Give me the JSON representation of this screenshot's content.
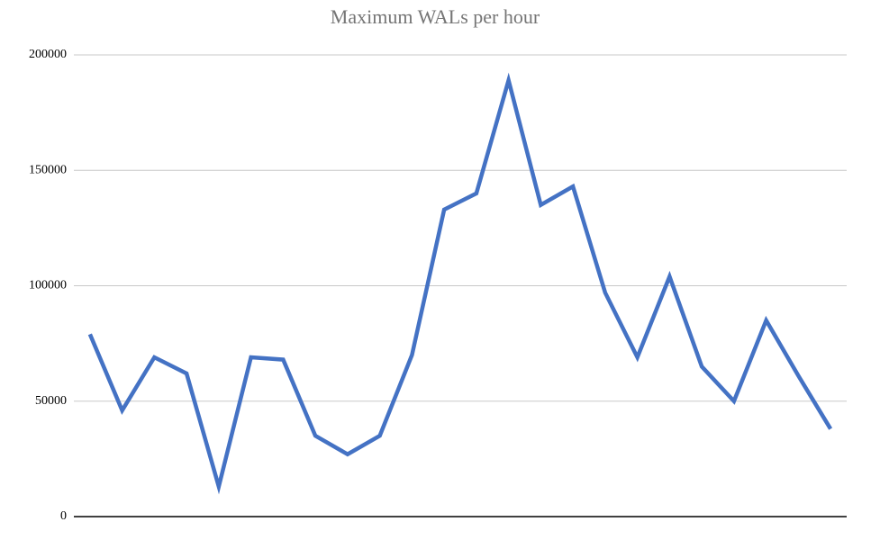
{
  "chart_data": {
    "type": "line",
    "title": "Maximum WALs per hour",
    "categories": [
      null,
      null,
      null,
      null,
      null,
      null,
      null,
      null,
      null,
      null,
      null,
      null,
      null,
      null,
      null,
      null,
      null,
      null,
      null,
      null,
      null,
      null,
      null,
      null
    ],
    "series": [
      {
        "color": "#4472c4",
        "values": [
          79000,
          46000,
          69000,
          62000,
          13000,
          69000,
          68000,
          35000,
          27000,
          35000,
          70000,
          133000,
          140000,
          189000,
          135000,
          143000,
          97000,
          69000,
          104000,
          65000,
          50000,
          85000,
          61000,
          38000
        ]
      }
    ],
    "ylim": [
      0,
      200000
    ],
    "yticks": [
      0,
      50000,
      100000,
      150000,
      200000
    ],
    "grid": true
  }
}
